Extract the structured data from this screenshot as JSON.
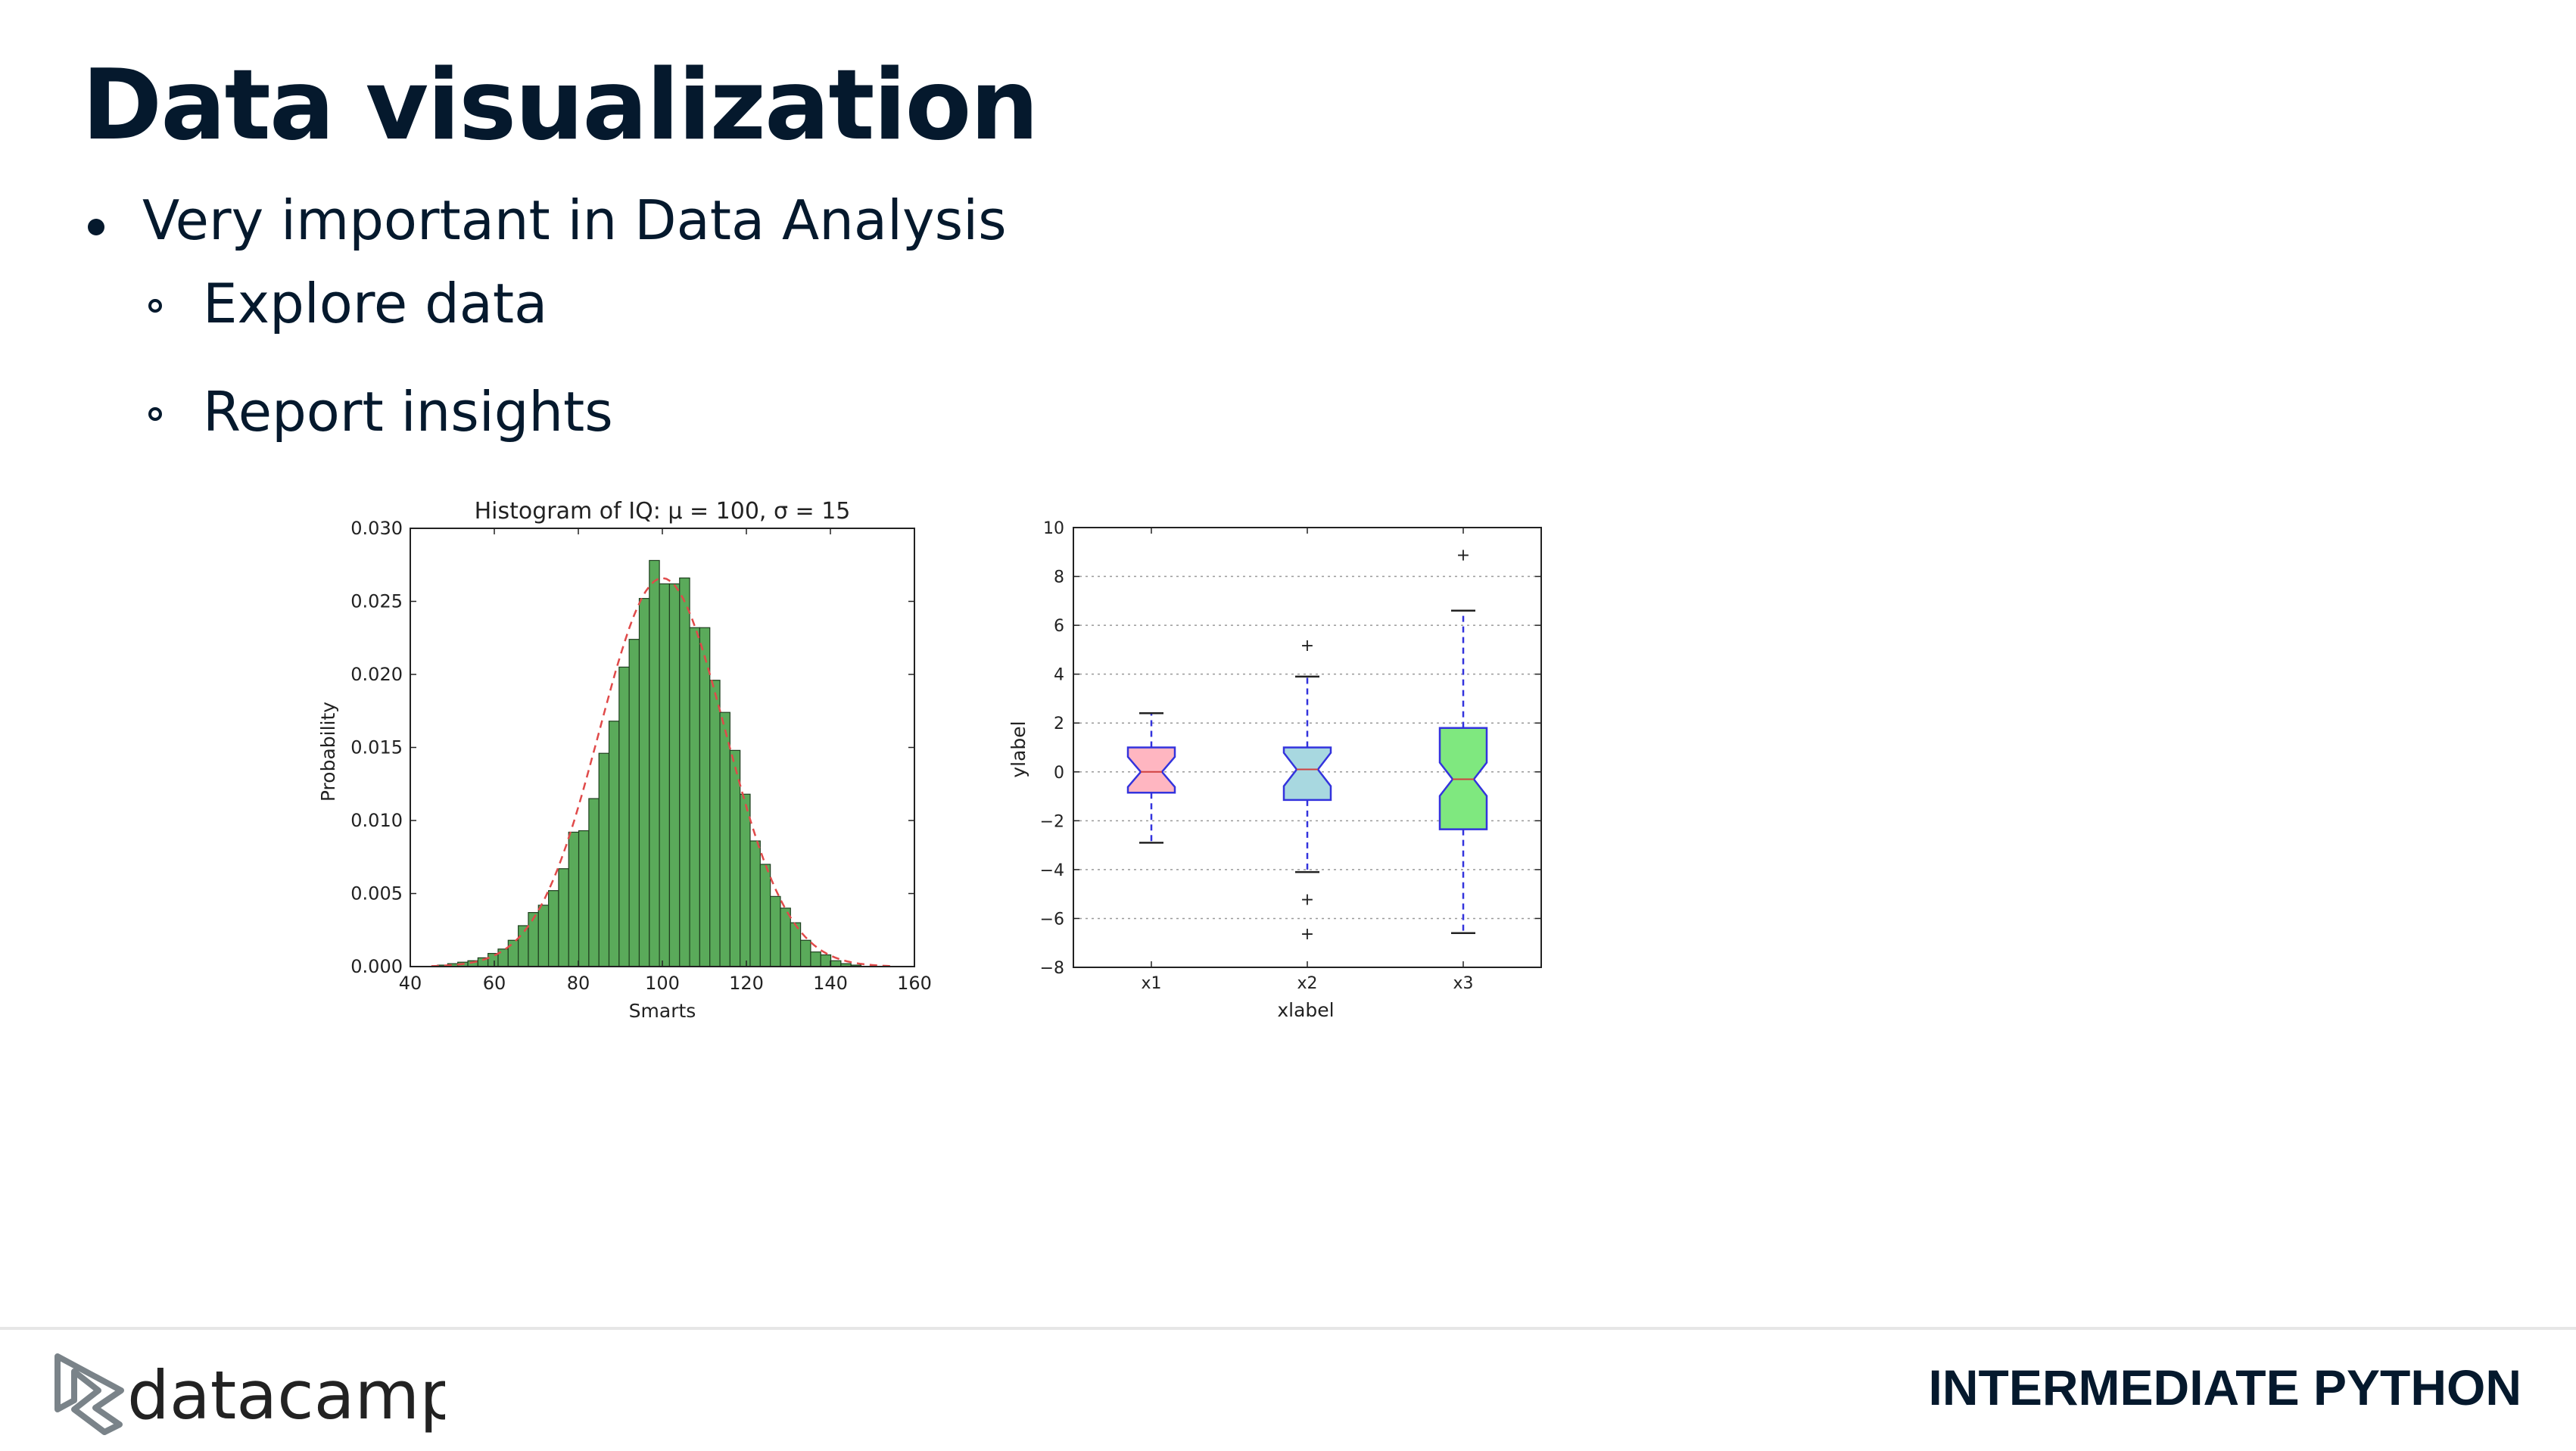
{
  "slide": {
    "title": "Data visualization",
    "bullets": [
      {
        "text": "Very important in Data Analysis",
        "level": 1
      },
      {
        "text": "Explore data",
        "level": 2
      },
      {
        "text": "Report insights",
        "level": 2
      }
    ]
  },
  "footer": {
    "logo_text": "datacamp",
    "course": "INTERMEDIATE PYTHON"
  },
  "colors": {
    "text": "#05192d",
    "hist_bar": "#5aaa5a",
    "hist_curve": "#e04a4a",
    "box_colors": [
      "#ffb6c1",
      "#a8d8e0",
      "#7fe87f"
    ],
    "box_edge": "#3333dd"
  },
  "chart_data": [
    {
      "type": "bar",
      "title": "Histogram of IQ: μ = 100, σ = 15",
      "xlabel": "Smarts",
      "ylabel": "Probability",
      "xlim": [
        40,
        160
      ],
      "ylim": [
        0,
        0.03
      ],
      "xticks": [
        "40",
        "60",
        "80",
        "100",
        "120",
        "140",
        "160"
      ],
      "yticks": [
        "0.000",
        "0.005",
        "0.010",
        "0.015",
        "0.020",
        "0.025",
        "0.030"
      ],
      "bin_width": 2.4,
      "bin_start": 46.5,
      "values": [
        0.0001,
        0.0002,
        0.0003,
        0.0004,
        0.0006,
        0.0009,
        0.0012,
        0.0018,
        0.0028,
        0.0037,
        0.0042,
        0.0052,
        0.0067,
        0.0092,
        0.0093,
        0.0115,
        0.0146,
        0.0168,
        0.0205,
        0.0224,
        0.0252,
        0.0278,
        0.0262,
        0.0262,
        0.0266,
        0.0232,
        0.0232,
        0.0196,
        0.0174,
        0.0148,
        0.0118,
        0.0086,
        0.007,
        0.0048,
        0.004,
        0.003,
        0.0018,
        0.001,
        0.0008,
        0.0004,
        0.0002,
        0.0001
      ],
      "curve": {
        "mu": 100,
        "sigma": 15
      }
    },
    {
      "type": "box",
      "xlabel": "xlabel",
      "ylabel": "ylabel",
      "ylim": [
        -8,
        10
      ],
      "yticks": [
        "10",
        "8",
        "6",
        "4",
        "2",
        "0",
        "−2",
        "−4",
        "−6",
        "−8"
      ],
      "grid": true,
      "categories": [
        "x1",
        "x2",
        "x3"
      ],
      "boxes": [
        {
          "name": "x1",
          "whisker_low": -2.9,
          "q1": -0.85,
          "median": 0.0,
          "q3": 1.0,
          "whisker_high": 2.4,
          "outliers": []
        },
        {
          "name": "x2",
          "whisker_low": -4.1,
          "q1": -1.15,
          "median": 0.1,
          "q3": 1.0,
          "whisker_high": 3.9,
          "outliers": [
            5.2,
            -5.2,
            -6.6
          ]
        },
        {
          "name": "x3",
          "whisker_low": -6.6,
          "q1": -2.35,
          "median": -0.3,
          "q3": 1.8,
          "whisker_high": 6.6,
          "outliers": [
            8.9
          ]
        }
      ]
    }
  ]
}
